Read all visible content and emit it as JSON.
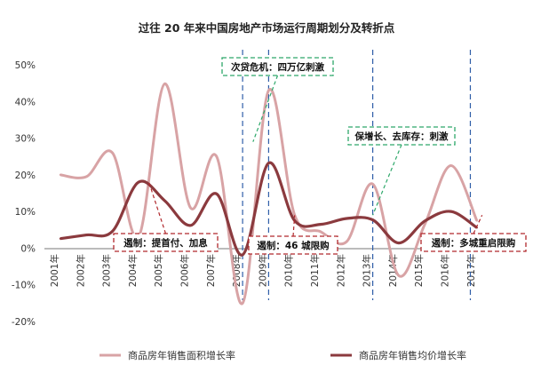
{
  "chart_data": {
    "type": "line",
    "title": "过往 20 年来中国房地产市场运行周期划分及转折点",
    "xlabel": "",
    "ylabel": "",
    "x_ticks": [
      "2001年",
      "2002年",
      "2003年",
      "2004年",
      "2005年",
      "2006年",
      "2007年",
      "2008年",
      "2009年",
      "2010年",
      "2011年",
      "2012年",
      "2013年",
      "2014年",
      "2015年",
      "2016年",
      "2017年"
    ],
    "y_ticks": [
      "50%",
      "40%",
      "30%",
      "20%",
      "10%",
      "0%",
      "-10%",
      "-20%"
    ],
    "ylim": [
      -20,
      50
    ],
    "grid": false,
    "legend_position": "bottom",
    "series": [
      {
        "name": "商品房年销售面积增长率",
        "color": "#d8a3a5",
        "x": [
          2001,
          2002,
          2003,
          2004,
          2005,
          2006,
          2007,
          2008,
          2009,
          2010,
          2011,
          2012,
          2013,
          2014,
          2015,
          2016,
          2017
        ],
        "values": [
          20,
          19.5,
          26,
          3,
          44.8,
          11,
          25,
          -15,
          43,
          9,
          4.5,
          1.8,
          17.5,
          -7.5,
          6.5,
          22.5,
          7.5
        ]
      },
      {
        "name": "商品房年销售均价增长率",
        "color": "#8b3a3e",
        "x": [
          2001,
          2002,
          2003,
          2004,
          2005,
          2006,
          2007,
          2008,
          2009,
          2010,
          2011,
          2012,
          2013,
          2014,
          2015,
          2016,
          2017
        ],
        "values": [
          2.6,
          3.6,
          4.6,
          18,
          13,
          6.2,
          14.8,
          -1.8,
          23.2,
          7.5,
          6.5,
          8.1,
          7.7,
          1.4,
          7.4,
          10,
          5.6
        ]
      }
    ],
    "vertical_markers": [
      2008,
      2009,
      2013,
      2016.75
    ],
    "annotations": {
      "stimulus": [
        {
          "text": "次贷危机：四万亿刺激",
          "anchor_x": 2008.4,
          "anchor_y": 29
        },
        {
          "text": "保增长、去库存：刺激",
          "anchor_x": 2013,
          "anchor_y": 9
        }
      ],
      "restriction": [
        {
          "text": "遏制：提首付、加息",
          "anchor_x": 2004.4,
          "anchor_y": 18
        },
        {
          "text": "遏制：46 城限购",
          "anchor_x": 2010,
          "anchor_y": 9
        },
        {
          "text": "遏制：多城重启限购",
          "anchor_x": 2017.2,
          "anchor_y": 9
        }
      ]
    }
  }
}
